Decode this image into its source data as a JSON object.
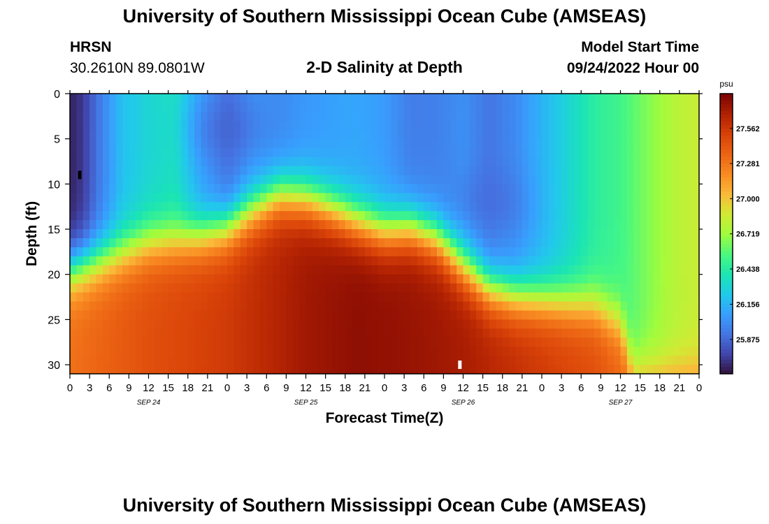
{
  "header": {
    "title": "University of Southern Mississippi Ocean Cube (AMSEAS)",
    "station": "HRSN",
    "coords": "30.2610N  89.0801W",
    "subtitle": "2-D Salinity at Depth",
    "start_label": "Model Start Time",
    "start_value": "09/24/2022 Hour 00"
  },
  "footer": {
    "title": "University of Southern Mississippi Ocean Cube (AMSEAS)"
  },
  "chart_data": {
    "type": "heatmap",
    "title": "2-D Salinity at Depth",
    "xlabel": "Forecast Time(Z)",
    "ylabel": "Depth (ft)",
    "x_tick_labels": [
      "0",
      "3",
      "6",
      "9",
      "12",
      "15",
      "18",
      "21",
      "0",
      "3",
      "6",
      "9",
      "12",
      "15",
      "18",
      "21",
      "0",
      "3",
      "6",
      "9",
      "12",
      "15",
      "18",
      "21",
      "0",
      "3",
      "6",
      "9",
      "12",
      "15",
      "18",
      "21",
      "0"
    ],
    "x_hours": [
      0,
      3,
      6,
      9,
      12,
      15,
      18,
      21,
      24,
      27,
      30,
      33,
      36,
      39,
      42,
      45,
      48,
      51,
      54,
      57,
      60,
      63,
      66,
      69,
      72,
      75,
      78,
      81,
      84,
      87,
      90,
      93,
      96
    ],
    "xlim": [
      0,
      96
    ],
    "date_labels": [
      {
        "label": "SEP 24",
        "hour": 12
      },
      {
        "label": "SEP 25",
        "hour": 36
      },
      {
        "label": "SEP 26",
        "hour": 60
      },
      {
        "label": "SEP 27",
        "hour": 84
      }
    ],
    "y_ticks": [
      0,
      5,
      10,
      15,
      20,
      25,
      30
    ],
    "ylim": [
      0,
      31
    ],
    "colorbar": {
      "unit": "psu",
      "ticks": [
        "27.562",
        "27.281",
        "27.000",
        "26.719",
        "26.438",
        "26.156",
        "25.875"
      ],
      "tick_values": [
        27.562,
        27.281,
        27.0,
        26.719,
        26.438,
        26.156,
        25.875
      ],
      "range": [
        25.6,
        27.84
      ]
    },
    "upper_layer_salinity_by_hour": [
      [
        0,
        25.65
      ],
      [
        2,
        25.72
      ],
      [
        4,
        25.9
      ],
      [
        8,
        26.2
      ],
      [
        12,
        26.3
      ],
      [
        16,
        26.35
      ],
      [
        20,
        26.08
      ],
      [
        24,
        25.9
      ],
      [
        28,
        26.02
      ],
      [
        32,
        26.0
      ],
      [
        36,
        26.05
      ],
      [
        40,
        26.08
      ],
      [
        44,
        26.1
      ],
      [
        48,
        26.06
      ],
      [
        52,
        25.95
      ],
      [
        56,
        25.96
      ],
      [
        60,
        26.02
      ],
      [
        64,
        25.92
      ],
      [
        68,
        26.0
      ],
      [
        72,
        26.15
      ],
      [
        76,
        26.3
      ],
      [
        80,
        26.45
      ],
      [
        84,
        26.52
      ],
      [
        88,
        26.65
      ],
      [
        92,
        26.78
      ],
      [
        96,
        26.85
      ]
    ],
    "halocline_depth_ft_by_hour": [
      [
        0,
        19.5
      ],
      [
        4,
        18.5
      ],
      [
        12,
        16.5
      ],
      [
        16,
        16.2
      ],
      [
        20,
        15.7
      ],
      [
        24,
        14.8
      ],
      [
        28,
        12.8
      ],
      [
        32,
        11.2
      ],
      [
        36,
        11.6
      ],
      [
        40,
        12.8
      ],
      [
        44,
        14.2
      ],
      [
        48,
        15.2
      ],
      [
        52,
        14.8
      ],
      [
        56,
        16.0
      ],
      [
        60,
        19.0
      ],
      [
        64,
        21.5
      ],
      [
        68,
        22.4
      ],
      [
        72,
        22.8
      ],
      [
        76,
        23.2
      ],
      [
        80,
        23.5
      ],
      [
        84,
        25.5
      ],
      [
        86,
        31
      ],
      [
        96,
        31
      ]
    ],
    "bottom_layer_salinity_by_hour": [
      [
        0,
        27.3
      ],
      [
        12,
        27.45
      ],
      [
        24,
        27.55
      ],
      [
        36,
        27.72
      ],
      [
        44,
        27.78
      ],
      [
        52,
        27.75
      ],
      [
        60,
        27.7
      ],
      [
        72,
        27.55
      ],
      [
        80,
        27.45
      ],
      [
        86,
        27.3
      ],
      [
        96,
        27.3
      ]
    ],
    "mid_depth_fresh_core": [
      {
        "hour": 24,
        "depth_ft": 4,
        "salinity": 25.85
      },
      {
        "hour": 64,
        "depth_ft": 12,
        "salinity": 25.88
      }
    ],
    "markers": [
      {
        "hour": 1.5,
        "depth_ft": 9,
        "color": "#000000"
      },
      {
        "hour": 59.5,
        "depth_ft": 30,
        "color": "#ffffff"
      }
    ]
  }
}
